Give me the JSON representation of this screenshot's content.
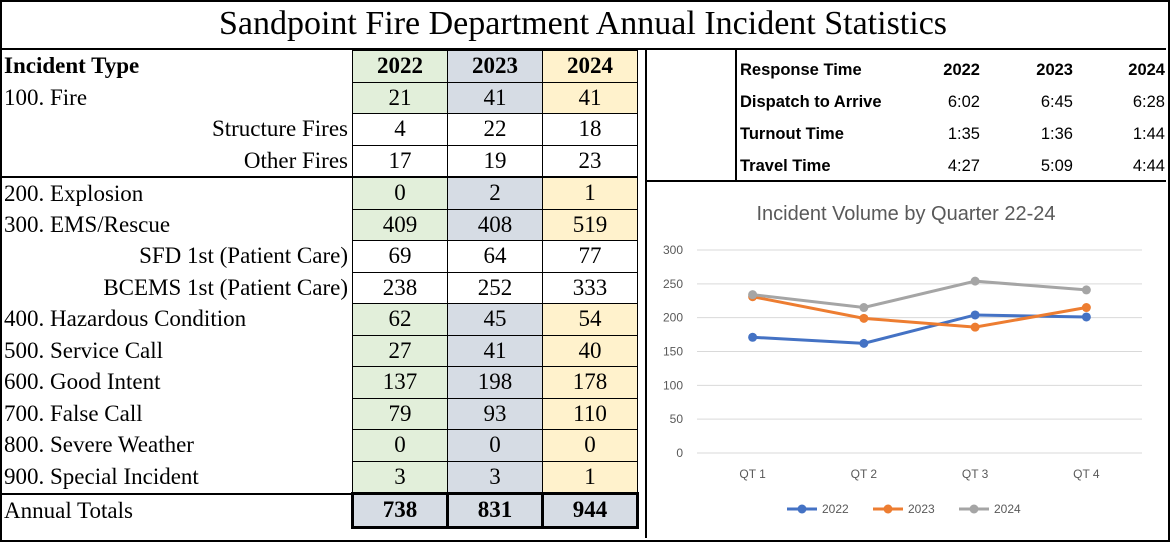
{
  "title": "Sandpoint Fire Department Annual Incident Statistics",
  "incident_table": {
    "header": {
      "label": "Incident Type",
      "years": [
        "2022",
        "2023",
        "2024"
      ]
    },
    "rows": [
      {
        "label": "100. Fire",
        "values": [
          "21",
          "41",
          "41"
        ]
      },
      {
        "label": "Structure Fires",
        "values": [
          "4",
          "22",
          "18"
        ]
      },
      {
        "label": "Other Fires",
        "values": [
          "17",
          "19",
          "23"
        ]
      },
      {
        "label": "200. Explosion",
        "values": [
          "0",
          "2",
          "1"
        ]
      },
      {
        "label": "300. EMS/Rescue",
        "values": [
          "409",
          "408",
          "519"
        ]
      },
      {
        "label": "SFD 1st (Patient Care)",
        "values": [
          "69",
          "64",
          "77"
        ]
      },
      {
        "label": "BCEMS 1st (Patient Care)",
        "values": [
          "238",
          "252",
          "333"
        ]
      },
      {
        "label": "400. Hazardous Condition",
        "values": [
          "62",
          "45",
          "54"
        ]
      },
      {
        "label": "500. Service Call",
        "values": [
          "27",
          "41",
          "40"
        ]
      },
      {
        "label": "600. Good Intent",
        "values": [
          "137",
          "198",
          "178"
        ]
      },
      {
        "label": "700. False Call",
        "values": [
          "79",
          "93",
          "110"
        ]
      },
      {
        "label": "800. Severe Weather",
        "values": [
          "0",
          "0",
          "0"
        ]
      },
      {
        "label": "900. Special Incident",
        "values": [
          "3",
          "3",
          "1"
        ]
      }
    ],
    "totals": {
      "label": "Annual Totals",
      "values": [
        "738",
        "831",
        "944"
      ]
    }
  },
  "response_table": {
    "header": {
      "label": "Response Time",
      "years": [
        "2022",
        "2023",
        "2024"
      ]
    },
    "rows": [
      {
        "label": "Dispatch to Arrive",
        "values": [
          "6:02",
          "6:45",
          "6:28"
        ]
      },
      {
        "label": "Turnout Time",
        "values": [
          "1:35",
          "1:36",
          "1:44"
        ]
      },
      {
        "label": "Travel Time",
        "values": [
          "4:27",
          "5:09",
          "4:44"
        ]
      }
    ]
  },
  "colors": {
    "2022": "#4472c4",
    "2023": "#ed7d31",
    "2024": "#a5a5a5"
  },
  "chart_data": {
    "type": "line",
    "title": "Incident Volume by Quarter 22-24",
    "categories": [
      "QT 1",
      "QT 2",
      "QT 3",
      "QT 4"
    ],
    "series": [
      {
        "name": "2022",
        "values": [
          171,
          162,
          204,
          201
        ]
      },
      {
        "name": "2023",
        "values": [
          231,
          199,
          186,
          215
        ]
      },
      {
        "name": "2024",
        "values": [
          234,
          215,
          254,
          241
        ]
      }
    ],
    "ylim": [
      0,
      300
    ],
    "yticks": [
      "0",
      "50",
      "100",
      "150",
      "200",
      "250",
      "300"
    ],
    "grid": true,
    "legend": "bottom"
  }
}
